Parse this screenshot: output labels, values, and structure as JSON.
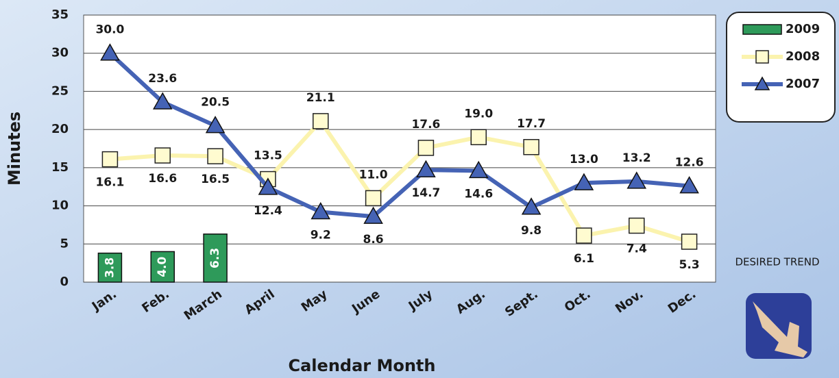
{
  "chart_data": {
    "type": "line",
    "x_label": "Calendar Month",
    "y_label": "Minutes",
    "note": "DESIRED TREND",
    "categories": [
      "Jan.",
      "Feb.",
      "March",
      "April",
      "May",
      "June",
      "July",
      "Aug.",
      "Sept.",
      "Oct.",
      "Nov.",
      "Dec."
    ],
    "ylim": [
      0,
      35
    ],
    "yticks": [
      0,
      5,
      10,
      15,
      20,
      25,
      30,
      35
    ],
    "grid": true,
    "legend": "upper right",
    "series": [
      {
        "name": "2009",
        "type": "bar",
        "color": "#2e9a5a",
        "values": [
          3.8,
          4.0,
          6.3,
          null,
          null,
          null,
          null,
          null,
          null,
          null,
          null,
          null
        ],
        "value_labels": [
          "3.8",
          "4.0",
          "6.3",
          null,
          null,
          null,
          null,
          null,
          null,
          null,
          null,
          null
        ]
      },
      {
        "name": "2008",
        "type": "line",
        "marker": "square",
        "color": "#fbf3ae",
        "values": [
          16.1,
          16.6,
          16.5,
          13.5,
          21.1,
          11.0,
          17.6,
          19.0,
          17.7,
          6.1,
          7.4,
          5.3
        ],
        "value_labels": [
          "16.1",
          "16.6",
          "16.5",
          "13.5",
          "21.1",
          "11.0",
          "17.6",
          "19.0",
          "17.7",
          "6.1",
          "7.4",
          "5.3"
        ]
      },
      {
        "name": "2007",
        "type": "line",
        "marker": "triangle",
        "color": "#4563b5",
        "values": [
          30.0,
          23.6,
          20.5,
          12.4,
          9.2,
          8.6,
          14.7,
          14.6,
          9.8,
          13.0,
          13.2,
          12.6
        ],
        "value_labels": [
          "30.0",
          "23.6",
          "20.5",
          "12.4",
          "9.2",
          "8.6",
          "14.7",
          "14.6",
          "9.8",
          "13.0",
          "13.2",
          "12.6"
        ]
      }
    ]
  }
}
